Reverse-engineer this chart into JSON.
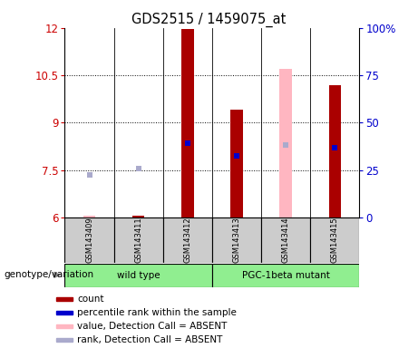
{
  "title": "GDS2515 / 1459075_at",
  "samples": [
    "GSM143409",
    "GSM143411",
    "GSM143412",
    "GSM143413",
    "GSM143414",
    "GSM143415"
  ],
  "ylim_left": [
    6,
    12
  ],
  "ylim_right": [
    0,
    100
  ],
  "yticks_left": [
    6,
    7.5,
    9,
    10.5,
    12
  ],
  "yticks_right": [
    0,
    25,
    50,
    75,
    100
  ],
  "ylabel_left_color": "#CC0000",
  "ylabel_right_color": "#0000CC",
  "bar_width": 0.25,
  "count_values": [
    6.05,
    6.05,
    11.95,
    9.4,
    10.7,
    10.2
  ],
  "count_absent": [
    true,
    false,
    false,
    false,
    true,
    false
  ],
  "rank_values": [
    7.35,
    7.55,
    8.35,
    7.95,
    8.3,
    8.2
  ],
  "rank_absent": [
    true,
    true,
    false,
    false,
    true,
    false
  ],
  "count_present_color": "#AA0000",
  "count_absent_color": "#FFB6C1",
  "rank_present_color": "#0000CC",
  "rank_absent_color": "#AAAACC",
  "grid_yticks": [
    7.5,
    9,
    10.5
  ],
  "wt_color": "#90EE90",
  "wt_label": "wild type",
  "pgc_label": "PGC-1beta mutant",
  "group_label": "genotype/variation",
  "legend_items": [
    {
      "label": "count",
      "color": "#AA0000"
    },
    {
      "label": "percentile rank within the sample",
      "color": "#0000CC"
    },
    {
      "label": "value, Detection Call = ABSENT",
      "color": "#FFB6C1"
    },
    {
      "label": "rank, Detection Call = ABSENT",
      "color": "#AAAACC"
    }
  ],
  "sample_box_color": "#CCCCCC",
  "fig_bg": "#FFFFFF"
}
